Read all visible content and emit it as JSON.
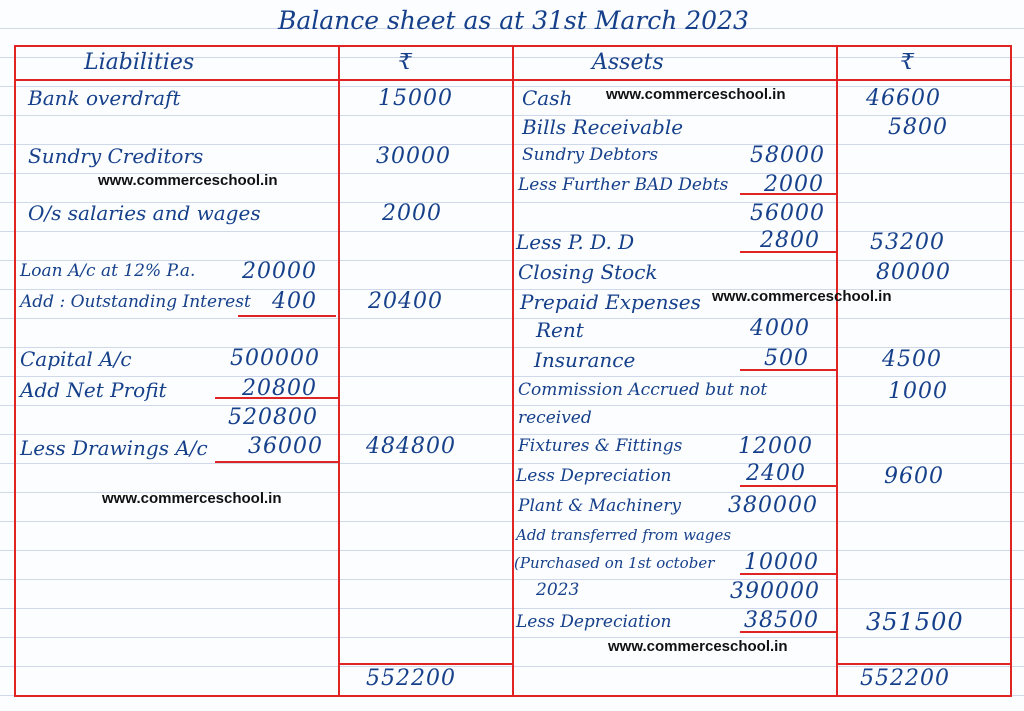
{
  "title": "Balance sheet as at 31st March 2023",
  "headers": {
    "liabilities": "Liabilities",
    "rupee_l": "₹",
    "assets": "Assets",
    "rupee_r": "₹"
  },
  "liabilities": {
    "bank_overdraft": {
      "label": "Bank overdraft",
      "amount": "15000"
    },
    "sundry_creditors": {
      "label": "Sundry Creditors",
      "amount": "30000"
    },
    "os_salaries": {
      "label": "O/s salaries and wages",
      "amount": "2000"
    },
    "loan": {
      "label": "Loan A/c at 12% P.a.",
      "value": "20000"
    },
    "outstanding_interest": {
      "label": "Add : Outstanding Interest",
      "value": "400",
      "amount": "20400"
    },
    "capital": {
      "label": "Capital A/c",
      "value": "500000"
    },
    "net_profit": {
      "label": "Add Net Profit",
      "value": "20800"
    },
    "capital_sub": "520800",
    "drawings": {
      "label": "Less Drawings A/c",
      "value": "36000",
      "amount": "484800"
    }
  },
  "assets": {
    "cash": {
      "label": "Cash",
      "amount": "46600"
    },
    "bills_receivable": {
      "label": "Bills Receivable",
      "amount": "5800"
    },
    "sundry_debtors": {
      "label": "Sundry Debtors",
      "value": "58000"
    },
    "further_bad_debts": {
      "label": "Less Further BAD Debts",
      "value": "2000"
    },
    "debtors_sub": "56000",
    "pdd": {
      "label": "Less P. D. D",
      "value": "2800",
      "amount": "53200"
    },
    "closing_stock": {
      "label": "Closing Stock",
      "amount": "80000"
    },
    "prepaid": {
      "label": "Prepaid Expenses"
    },
    "rent": {
      "label": "Rent",
      "value": "4000"
    },
    "insurance": {
      "label": "Insurance",
      "value": "500",
      "amount": "4500"
    },
    "commission": {
      "label_line1": "Commission Accrued but not",
      "label_line2": "received",
      "amount": "1000"
    },
    "fixtures": {
      "label": "Fixtures & Fittings",
      "value": "12000"
    },
    "fixtures_dep": {
      "label": "Less Depreciation",
      "value": "2400",
      "amount": "9600"
    },
    "plant": {
      "label": "Plant & Machinery",
      "value": "380000"
    },
    "transferred": {
      "line1": "Add transferred from wages",
      "line2": "(Purchased on 1st october",
      "line3": "2023",
      "value": "10000"
    },
    "plant_sub": "390000",
    "plant_dep": {
      "label": "Less Depreciation",
      "value": "38500",
      "amount": "351500"
    }
  },
  "totals": {
    "liabilities": "552200",
    "assets": "552200"
  },
  "watermark": "www.commerceschool.in"
}
